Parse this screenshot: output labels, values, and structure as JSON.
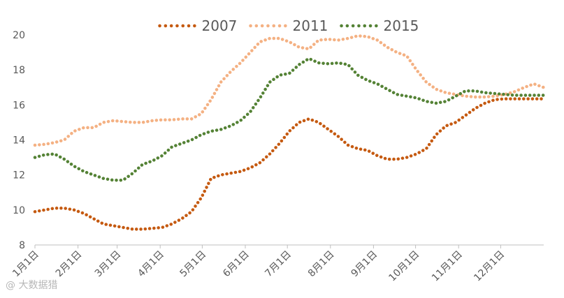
{
  "chart_data": {
    "type": "line",
    "title": "",
    "xlabel": "",
    "ylabel": "",
    "ylim": [
      8,
      20
    ],
    "yticks": [
      8,
      10,
      12,
      14,
      16,
      18,
      20
    ],
    "x_range": [
      0,
      52
    ],
    "xticks": [
      {
        "label": "1月1日",
        "x": 0
      },
      {
        "label": "2月1日",
        "x": 4.4
      },
      {
        "label": "3月1日",
        "x": 8.4
      },
      {
        "label": "4月1日",
        "x": 12.8
      },
      {
        "label": "5月1日",
        "x": 17.1
      },
      {
        "label": "6月1日",
        "x": 21.5
      },
      {
        "label": "7月1日",
        "x": 25.8
      },
      {
        "label": "8月1日",
        "x": 30.2
      },
      {
        "label": "9月1日",
        "x": 34.6
      },
      {
        "label": "10月1日",
        "x": 38.9
      },
      {
        "label": "11月1日",
        "x": 43.3
      },
      {
        "label": "12月1日",
        "x": 47.6
      }
    ],
    "grid": false,
    "legend_position": "top",
    "series": [
      {
        "name": "2007",
        "color": "#c55a11",
        "style": "dotted",
        "x": [
          0,
          1,
          2,
          3,
          4,
          5,
          6,
          7,
          8,
          9,
          10,
          11,
          12,
          13,
          14,
          15,
          16,
          17,
          18,
          19,
          20,
          21,
          22,
          23,
          24,
          25,
          26,
          27,
          28,
          29,
          30,
          31,
          32,
          33,
          34,
          35,
          36,
          37,
          38,
          39,
          40,
          41,
          42,
          43,
          44,
          45,
          46,
          47,
          48,
          49,
          50,
          51,
          52
        ],
        "values": [
          9.9,
          10.0,
          10.1,
          10.1,
          10.0,
          9.8,
          9.5,
          9.2,
          9.1,
          9.0,
          8.9,
          8.9,
          8.95,
          9.0,
          9.2,
          9.5,
          9.9,
          10.7,
          11.8,
          12.0,
          12.1,
          12.2,
          12.4,
          12.7,
          13.2,
          13.8,
          14.5,
          15.0,
          15.2,
          15.0,
          14.6,
          14.2,
          13.7,
          13.5,
          13.4,
          13.1,
          12.9,
          12.9,
          13.0,
          13.2,
          13.5,
          14.3,
          14.8,
          15.0,
          15.4,
          15.8,
          16.1,
          16.3,
          16.35,
          16.35,
          16.35,
          16.35,
          16.35
        ]
      },
      {
        "name": "2011",
        "color": "#f4b183",
        "style": "dotted",
        "x": [
          0,
          1,
          2,
          3,
          4,
          5,
          6,
          7,
          8,
          9,
          10,
          11,
          12,
          13,
          14,
          15,
          16,
          17,
          18,
          19,
          20,
          21,
          22,
          23,
          24,
          25,
          26,
          27,
          28,
          29,
          30,
          31,
          32,
          33,
          34,
          35,
          36,
          37,
          38,
          39,
          40,
          41,
          42,
          43,
          44,
          45,
          46,
          47,
          48,
          49,
          50,
          51,
          52
        ],
        "values": [
          13.7,
          13.75,
          13.85,
          14.0,
          14.5,
          14.7,
          14.7,
          15.0,
          15.1,
          15.05,
          15.0,
          15.0,
          15.1,
          15.15,
          15.15,
          15.2,
          15.2,
          15.5,
          16.3,
          17.3,
          17.9,
          18.4,
          19.0,
          19.6,
          19.8,
          19.8,
          19.6,
          19.3,
          19.2,
          19.7,
          19.75,
          19.7,
          19.8,
          19.95,
          19.9,
          19.7,
          19.3,
          19.0,
          18.8,
          18.0,
          17.3,
          16.9,
          16.7,
          16.6,
          16.5,
          16.45,
          16.45,
          16.5,
          16.6,
          16.75,
          17.0,
          17.2,
          17.0
        ]
      },
      {
        "name": "2015",
        "color": "#548235",
        "style": "dotted",
        "x": [
          0,
          1,
          2,
          3,
          4,
          5,
          6,
          7,
          8,
          9,
          10,
          11,
          12,
          13,
          14,
          15,
          16,
          17,
          18,
          19,
          20,
          21,
          22,
          23,
          24,
          25,
          26,
          27,
          28,
          29,
          30,
          31,
          32,
          33,
          34,
          35,
          36,
          37,
          38,
          39,
          40,
          41,
          42,
          43,
          44,
          45,
          46,
          47,
          48,
          49,
          50,
          51,
          52
        ],
        "values": [
          13.0,
          13.15,
          13.2,
          12.9,
          12.5,
          12.2,
          12.0,
          11.8,
          11.7,
          11.7,
          12.1,
          12.6,
          12.8,
          13.1,
          13.6,
          13.8,
          14.0,
          14.3,
          14.5,
          14.6,
          14.8,
          15.1,
          15.6,
          16.4,
          17.3,
          17.7,
          17.8,
          18.3,
          18.65,
          18.4,
          18.35,
          18.4,
          18.3,
          17.7,
          17.4,
          17.2,
          16.9,
          16.6,
          16.5,
          16.4,
          16.2,
          16.1,
          16.2,
          16.5,
          16.8,
          16.8,
          16.7,
          16.65,
          16.6,
          16.55,
          16.55,
          16.55,
          16.55
        ]
      }
    ]
  },
  "watermark": {
    "text": "@ 大数据猎"
  }
}
